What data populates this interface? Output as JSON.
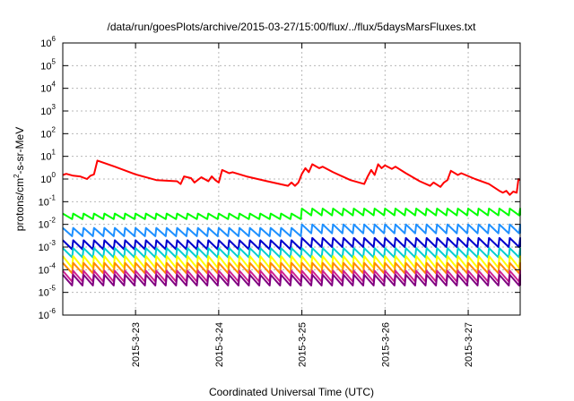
{
  "chart_data": {
    "type": "line",
    "title": "/data/run/goesPlots/archive/2015-03-27/15:00/flux/../flux/5daysMarsFluxes.txt",
    "xlabel": "Coordinated Universal Time (UTC)",
    "ylabel": "protons/cm²-s-sr-MeV",
    "ylabel_parts": {
      "base": "protons/cm",
      "exp": "2",
      "rest": "-s-sr-MeV"
    },
    "y_scale": "log",
    "ylim": [
      1e-06,
      1000000.0
    ],
    "y_ticks": [
      {
        "base": "10",
        "exp": "-6",
        "value": 1e-06
      },
      {
        "base": "10",
        "exp": "-5",
        "value": 1e-05
      },
      {
        "base": "10",
        "exp": "-4",
        "value": 0.0001
      },
      {
        "base": "10",
        "exp": "-3",
        "value": 0.001
      },
      {
        "base": "10",
        "exp": "-2",
        "value": 0.01
      },
      {
        "base": "10",
        "exp": "-1",
        "value": 0.1
      },
      {
        "base": "10",
        "exp": "0",
        "value": 1
      },
      {
        "base": "10",
        "exp": "1",
        "value": 10
      },
      {
        "base": "10",
        "exp": "2",
        "value": 100
      },
      {
        "base": "10",
        "exp": "3",
        "value": 1000
      },
      {
        "base": "10",
        "exp": "4",
        "value": 10000
      },
      {
        "base": "10",
        "exp": "5",
        "value": 100000
      },
      {
        "base": "10",
        "exp": "6",
        "value": 1000000
      }
    ],
    "xlim": [
      "2015-03-22 03:00",
      "2015-03-27 15:00"
    ],
    "x_ticks": [
      {
        "label": "2015-3-23",
        "date": "2015-03-23 00:00"
      },
      {
        "label": "2015-3-24",
        "date": "2015-03-24 00:00"
      },
      {
        "label": "2015-3-25",
        "date": "2015-03-25 00:00"
      },
      {
        "label": "2015-3-26",
        "date": "2015-03-26 00:00"
      },
      {
        "label": "2015-3-27",
        "date": "2015-03-27 00:00"
      }
    ],
    "grid": true,
    "series": [
      {
        "color": "#ff0000",
        "points": [
          [
            "2015-03-22 03:00",
            1.5
          ],
          [
            "2015-03-22 04:00",
            1.7
          ],
          [
            "2015-03-22 06:00",
            1.4
          ],
          [
            "2015-03-22 08:00",
            1.3
          ],
          [
            "2015-03-22 10:00",
            1.0
          ],
          [
            "2015-03-22 11:00",
            1.4
          ],
          [
            "2015-03-22 12:00",
            1.6
          ],
          [
            "2015-03-22 13:00",
            6.5
          ],
          [
            "2015-03-22 18:00",
            3.5
          ],
          [
            "2015-03-23 00:00",
            1.6
          ],
          [
            "2015-03-23 06:00",
            0.9
          ],
          [
            "2015-03-23 12:00",
            0.8
          ],
          [
            "2015-03-23 13:00",
            0.6
          ],
          [
            "2015-03-23 14:00",
            1.3
          ],
          [
            "2015-03-23 16:00",
            1.1
          ],
          [
            "2015-03-23 17:00",
            0.7
          ],
          [
            "2015-03-23 19:00",
            1.2
          ],
          [
            "2015-03-23 21:00",
            0.8
          ],
          [
            "2015-03-23 22:00",
            1.3
          ],
          [
            "2015-03-23 23:00",
            0.9
          ],
          [
            "2015-03-24 00:00",
            0.7
          ],
          [
            "2015-03-24 01:00",
            2.5
          ],
          [
            "2015-03-24 03:00",
            1.8
          ],
          [
            "2015-03-24 04:00",
            2.0
          ],
          [
            "2015-03-24 08:00",
            1.3
          ],
          [
            "2015-03-24 14:00",
            0.8
          ],
          [
            "2015-03-24 20:00",
            0.5
          ],
          [
            "2015-03-24 21:00",
            0.7
          ],
          [
            "2015-03-24 22:00",
            0.5
          ],
          [
            "2015-03-24 23:00",
            0.7
          ],
          [
            "2015-03-25 00:00",
            1.7
          ],
          [
            "2015-03-25 01:00",
            3.0
          ],
          [
            "2015-03-25 02:00",
            2.0
          ],
          [
            "2015-03-25 03:00",
            4.5
          ],
          [
            "2015-03-25 05:00",
            3.0
          ],
          [
            "2015-03-25 06:00",
            3.5
          ],
          [
            "2015-03-25 09:00",
            2.0
          ],
          [
            "2015-03-25 14:00",
            0.9
          ],
          [
            "2015-03-25 18:00",
            0.6
          ],
          [
            "2015-03-25 19:00",
            1.3
          ],
          [
            "2015-03-25 20:00",
            2.5
          ],
          [
            "2015-03-25 21:00",
            1.5
          ],
          [
            "2015-03-25 22:00",
            4.5
          ],
          [
            "2015-03-25 23:00",
            3.0
          ],
          [
            "2015-03-26 00:00",
            4.0
          ],
          [
            "2015-03-26 02:00",
            2.8
          ],
          [
            "2015-03-26 03:00",
            3.5
          ],
          [
            "2015-03-26 06:00",
            1.8
          ],
          [
            "2015-03-26 10:00",
            0.8
          ],
          [
            "2015-03-26 13:00",
            0.5
          ],
          [
            "2015-03-26 14:00",
            0.7
          ],
          [
            "2015-03-26 16:00",
            0.45
          ],
          [
            "2015-03-26 17:00",
            0.7
          ],
          [
            "2015-03-26 18:00",
            0.9
          ],
          [
            "2015-03-26 19:00",
            2.3
          ],
          [
            "2015-03-26 21:00",
            1.5
          ],
          [
            "2015-03-26 22:00",
            1.8
          ],
          [
            "2015-03-27 02:00",
            1.0
          ],
          [
            "2015-03-27 06:00",
            0.6
          ],
          [
            "2015-03-27 09:00",
            0.3
          ],
          [
            "2015-03-27 10:00",
            0.25
          ],
          [
            "2015-03-27 11:00",
            0.3
          ],
          [
            "2015-03-27 12:00",
            0.2
          ],
          [
            "2015-03-27 13:00",
            0.28
          ],
          [
            "2015-03-27 14:00",
            0.25
          ],
          [
            "2015-03-27 14:30",
            1.0
          ],
          [
            "2015-03-27 15:00",
            0.9
          ]
        ]
      },
      {
        "color": "#00ff00",
        "low": 0.017,
        "high": 0.03,
        "low2": 0.025,
        "high2": 0.05,
        "step_date": "2015-03-25 00:00"
      },
      {
        "color": "#1e90ff",
        "low": 0.003,
        "high": 0.007,
        "low2": 0.004,
        "high2": 0.01,
        "step_date": "2015-03-25 00:00"
      },
      {
        "color": "#0000cd",
        "low": 0.0008,
        "high": 0.002,
        "low2": 0.001,
        "high2": 0.0025,
        "step_date": "2015-03-25 00:00"
      },
      {
        "color": "#00ced1",
        "low": 0.00035,
        "high": 0.0009
      },
      {
        "color": "#ffff00",
        "low": 0.00012,
        "high": 0.0004
      },
      {
        "color": "#ff8c00",
        "low": 7e-05,
        "high": 0.0002
      },
      {
        "color": "#d02090",
        "low": 3e-05,
        "high": 9e-05
      },
      {
        "color": "#800080",
        "low": 2e-05,
        "high": 6e-05
      }
    ],
    "sawtooth_period_hours": 3
  }
}
